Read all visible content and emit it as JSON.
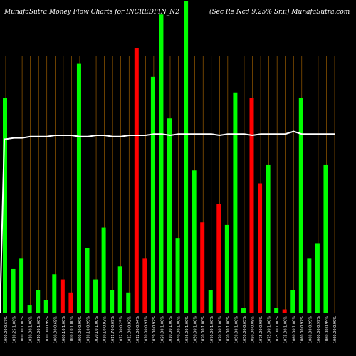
{
  "chart_data": {
    "type": "bar",
    "title": "MunafaSutra  Money Flow  Charts for INCREDFIN_N2",
    "subtitle": "(Sec Re    Ncd 9.25% Sr.ii) MunafaSutra.com",
    "categories": [
      "1000.00 0.67%",
      "1010.25 1.00%",
      "1000.00 1.00%",
      "1010.00 1.00%",
      "1010.00 1.00%",
      "1010.00 0.99%",
      "1000.00 0.65%",
      "1000.10 1.00%",
      "1000.10 1.00%",
      "1000.00 0.99%",
      "1010.10 0.99%",
      "1020.10 1.00%",
      "1010.10 0.93%",
      "1011.70 0.09%",
      "1012.00 0.25%",
      "1012.00 0.92%",
      "1012.00 0.94%",
      "1010.00 0.91%",
      "1039.00 0.92%",
      "1020.00 1.00%",
      "1010.00 1.00%",
      "1040.00 1.00%",
      "1036.00 1.00%",
      "1050.00 1.00%",
      "1070.00 1.00%",
      "1070.00 1.00%",
      "1070.00 1.00%",
      "1070.00 1.00%",
      "1050.00 1.00%",
      "1050.00 0.05%",
      "1050.00 0.08%",
      "1075.00 0.98%",
      "1075.00 1.00%",
      "1075.00 1.00%",
      "1075.00 1.00%",
      "1060.00 1.00%",
      "1060.00 0.97%",
      "1060.00 0.99%",
      "1060.00 0.99%",
      "1060.00 0.99%",
      "1060.00 0.99%"
    ],
    "bar_heights": [
      0.83,
      0.17,
      0.21,
      0.03,
      0.09,
      0.05,
      0.15,
      0.13,
      0.08,
      0.96,
      0.25,
      0.13,
      0.33,
      0.09,
      0.18,
      0.08,
      1.02,
      0.21,
      0.91,
      1.15,
      0.75,
      0.29,
      1.2,
      0.55,
      0.35,
      0.09,
      0.42,
      0.34,
      0.85,
      0.02,
      0.83,
      0.5,
      0.57,
      0.02,
      0.015,
      0.09,
      0.83,
      0.21,
      0.27,
      0.57,
      0.0
    ],
    "bar_colors": [
      "green",
      "green",
      "green",
      "green",
      "green",
      "green",
      "green",
      "red",
      "red",
      "green",
      "green",
      "green",
      "green",
      "green",
      "green",
      "green",
      "red",
      "red",
      "green",
      "green",
      "green",
      "green",
      "green",
      "green",
      "red",
      "green",
      "red",
      "green",
      "green",
      "green",
      "red",
      "red",
      "green",
      "green",
      "red",
      "green",
      "green",
      "green",
      "green",
      "green",
      "green"
    ],
    "line_values": [
      0.67,
      0.675,
      0.675,
      0.68,
      0.68,
      0.68,
      0.685,
      0.685,
      0.685,
      0.68,
      0.68,
      0.685,
      0.685,
      0.68,
      0.68,
      0.685,
      0.685,
      0.685,
      0.69,
      0.69,
      0.685,
      0.69,
      0.69,
      0.69,
      0.69,
      0.69,
      0.685,
      0.69,
      0.69,
      0.69,
      0.685,
      0.69,
      0.69,
      0.69,
      0.69,
      0.7,
      0.69,
      0.69,
      0.69,
      0.69,
      0.69
    ],
    "colors": {
      "green": "#00ff00",
      "red": "#ff0000",
      "line": "#ffffff",
      "grid": "#b26a00",
      "background": "#000000"
    }
  }
}
